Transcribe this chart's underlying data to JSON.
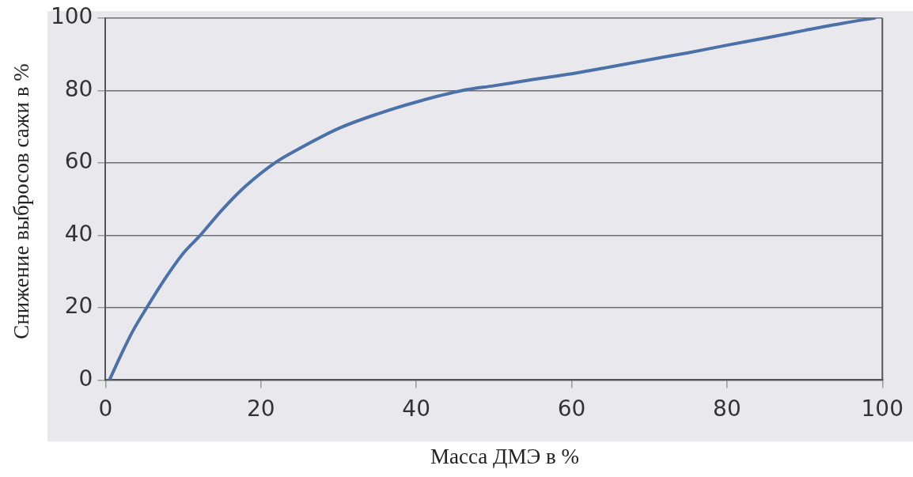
{
  "chart_data": {
    "type": "line",
    "xlabel": "Масса ДМЭ в %",
    "ylabel": "Снижение выбросов сажи в %",
    "x": [
      0.5,
      2,
      3.5,
      5.3,
      7.5,
      10,
      12.2,
      15,
      18,
      21.8,
      25,
      30,
      35,
      40,
      46,
      50,
      55,
      60,
      65,
      70,
      75,
      80,
      85,
      90,
      95,
      99
    ],
    "series": [
      {
        "color": "#4a72a8",
        "values": [
          0,
          7,
          13.5,
          20,
          27.5,
          35,
          40,
          47,
          53.5,
          60,
          64,
          69.5,
          73.5,
          76.8,
          80,
          81.3,
          83,
          84.6,
          86.5,
          88.5,
          90.4,
          92.5,
          94.5,
          96.6,
          98.6,
          100
        ]
      }
    ],
    "xlim": [
      0,
      100
    ],
    "ylim": [
      0,
      100
    ],
    "xticks": [
      0,
      20,
      40,
      60,
      80,
      100
    ],
    "yticks": [
      0,
      20,
      40,
      60,
      80,
      100
    ],
    "grid": "y",
    "legend": false,
    "marker": "none",
    "line_style": "solid"
  }
}
